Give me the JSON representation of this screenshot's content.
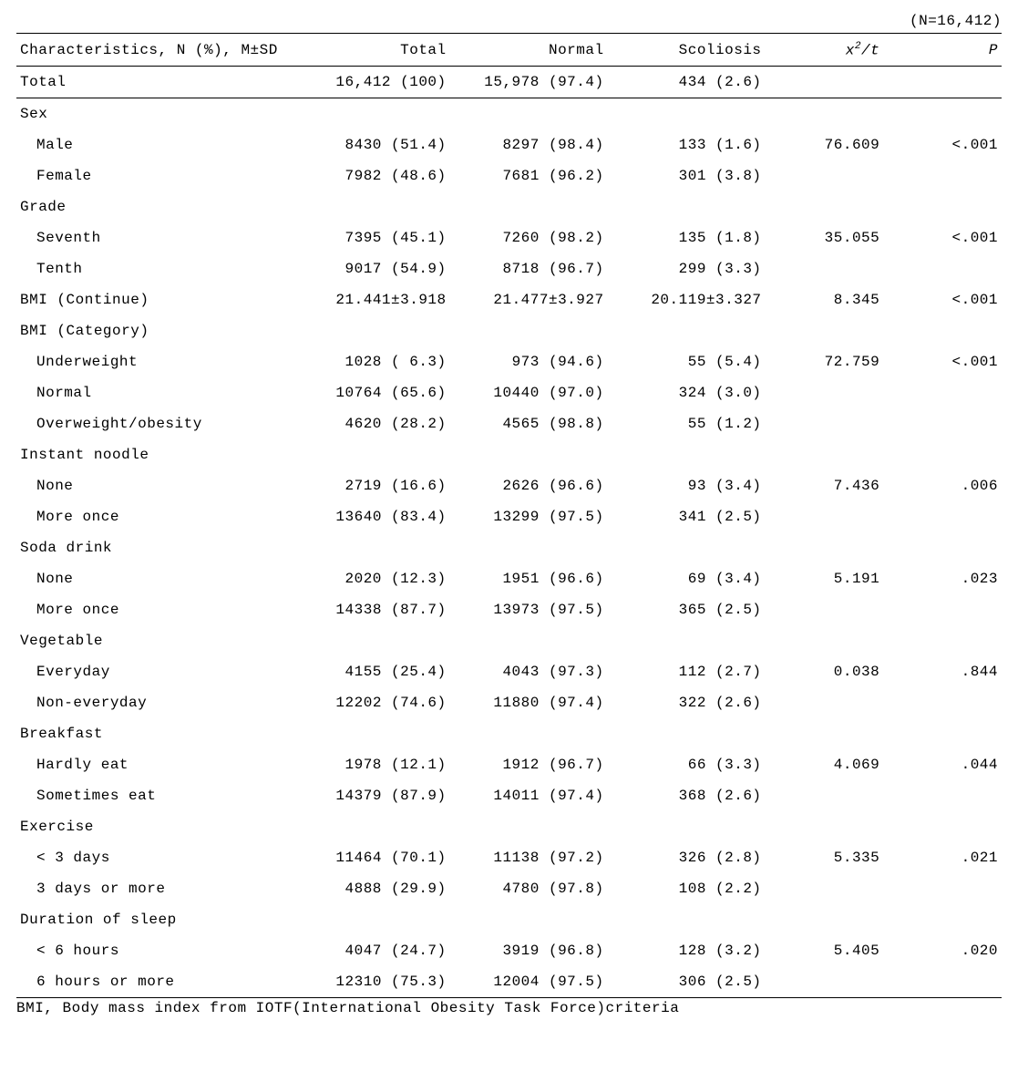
{
  "caption": {
    "n_label": "(N=16,412)"
  },
  "header": {
    "characteristics": "Characteristics, N (%), M±SD",
    "total": "Total",
    "normal": "Normal",
    "scoliosis": "Scoliosis",
    "stat_prefix": "x",
    "stat_sup": "2",
    "stat_suffix": "/t",
    "p": "P"
  },
  "rows": [
    {
      "class": "total-row",
      "label": "Total",
      "sub": false,
      "total": "16,412 (100)",
      "normal": "15,978 (97.4)",
      "scol": "434 (2.6)",
      "stat": "",
      "p": ""
    },
    {
      "label": "Sex",
      "sub": false,
      "total": "",
      "normal": "",
      "scol": "",
      "stat": "",
      "p": ""
    },
    {
      "label": "Male",
      "sub": true,
      "total": "8430 (51.4)",
      "normal": "8297 (98.4)",
      "scol": "133 (1.6)",
      "stat": "76.609",
      "p": "<.001"
    },
    {
      "label": "Female",
      "sub": true,
      "total": "7982 (48.6)",
      "normal": "7681 (96.2)",
      "scol": "301 (3.8)",
      "stat": "",
      "p": ""
    },
    {
      "label": "Grade",
      "sub": false,
      "total": "",
      "normal": "",
      "scol": "",
      "stat": "",
      "p": ""
    },
    {
      "label": "Seventh",
      "sub": true,
      "total": "7395 (45.1)",
      "normal": "7260 (98.2)",
      "scol": "135 (1.8)",
      "stat": "35.055",
      "p": "<.001"
    },
    {
      "label": "Tenth",
      "sub": true,
      "total": "9017 (54.9)",
      "normal": "8718 (96.7)",
      "scol": "299 (3.3)",
      "stat": "",
      "p": ""
    },
    {
      "label": "BMI (Continue)",
      "sub": false,
      "total": "21.441±3.918",
      "normal": "21.477±3.927",
      "scol": "20.119±3.327",
      "stat": "8.345",
      "p": "<.001"
    },
    {
      "label": "BMI (Category)",
      "sub": false,
      "total": "",
      "normal": "",
      "scol": "",
      "stat": "",
      "p": ""
    },
    {
      "label": "Underweight",
      "sub": true,
      "total": "1028 ( 6.3)",
      "normal": "973 (94.6)",
      "scol": "55 (5.4)",
      "stat": "72.759",
      "p": "<.001"
    },
    {
      "label": "Normal",
      "sub": true,
      "total": "10764 (65.6)",
      "normal": "10440 (97.0)",
      "scol": "324 (3.0)",
      "stat": "",
      "p": ""
    },
    {
      "label": "Overweight/obesity",
      "sub": true,
      "total": "4620 (28.2)",
      "normal": "4565 (98.8)",
      "scol": "55 (1.2)",
      "stat": "",
      "p": ""
    },
    {
      "label": "Instant noodle",
      "sub": false,
      "total": "",
      "normal": "",
      "scol": "",
      "stat": "",
      "p": ""
    },
    {
      "label": "None",
      "sub": true,
      "total": "2719 (16.6)",
      "normal": "2626 (96.6)",
      "scol": "93 (3.4)",
      "stat": "7.436",
      "p": ".006"
    },
    {
      "label": "More once",
      "sub": true,
      "total": "13640 (83.4)",
      "normal": "13299 (97.5)",
      "scol": "341 (2.5)",
      "stat": "",
      "p": ""
    },
    {
      "label": "Soda drink",
      "sub": false,
      "total": "",
      "normal": "",
      "scol": "",
      "stat": "",
      "p": ""
    },
    {
      "label": "None",
      "sub": true,
      "total": "2020 (12.3)",
      "normal": "1951 (96.6)",
      "scol": "69 (3.4)",
      "stat": "5.191",
      "p": ".023"
    },
    {
      "label": "More once",
      "sub": true,
      "total": "14338 (87.7)",
      "normal": "13973 (97.5)",
      "scol": "365 (2.5)",
      "stat": "",
      "p": ""
    },
    {
      "label": "Vegetable",
      "sub": false,
      "total": "",
      "normal": "",
      "scol": "",
      "stat": "",
      "p": ""
    },
    {
      "label": "Everyday",
      "sub": true,
      "total": "4155 (25.4)",
      "normal": "4043 (97.3)",
      "scol": "112 (2.7)",
      "stat": "0.038",
      "p": ".844"
    },
    {
      "label": "Non-everyday",
      "sub": true,
      "total": "12202 (74.6)",
      "normal": "11880 (97.4)",
      "scol": "322 (2.6)",
      "stat": "",
      "p": ""
    },
    {
      "label": "Breakfast",
      "sub": false,
      "total": "",
      "normal": "",
      "scol": "",
      "stat": "",
      "p": ""
    },
    {
      "label": "Hardly eat",
      "sub": true,
      "total": "1978 (12.1)",
      "normal": "1912 (96.7)",
      "scol": "66 (3.3)",
      "stat": "4.069",
      "p": ".044"
    },
    {
      "label": "Sometimes eat",
      "sub": true,
      "total": "14379 (87.9)",
      "normal": "14011 (97.4)",
      "scol": "368 (2.6)",
      "stat": "",
      "p": ""
    },
    {
      "label": "Exercise",
      "sub": false,
      "total": "",
      "normal": "",
      "scol": "",
      "stat": "",
      "p": ""
    },
    {
      "label": "< 3 days",
      "sub": true,
      "total": "11464 (70.1)",
      "normal": "11138 (97.2)",
      "scol": "326 (2.8)",
      "stat": "5.335",
      "p": ".021"
    },
    {
      "label": "3 days or more",
      "sub": true,
      "total": "4888 (29.9)",
      "normal": "4780 (97.8)",
      "scol": "108 (2.2)",
      "stat": "",
      "p": ""
    },
    {
      "label": "Duration of sleep",
      "sub": false,
      "total": "",
      "normal": "",
      "scol": "",
      "stat": "",
      "p": ""
    },
    {
      "label": "< 6 hours",
      "sub": true,
      "total": "4047 (24.7)",
      "normal": "3919 (96.8)",
      "scol": "128 (3.2)",
      "stat": "5.405",
      "p": ".020"
    },
    {
      "class": "last-row",
      "label": "6 hours or more",
      "sub": true,
      "total": "12310 (75.3)",
      "normal": "12004 (97.5)",
      "scol": "306 (2.5)",
      "stat": "",
      "p": ""
    }
  ],
  "footnote": "BMI, Body mass index from IOTF(International Obesity Task Force)criteria"
}
